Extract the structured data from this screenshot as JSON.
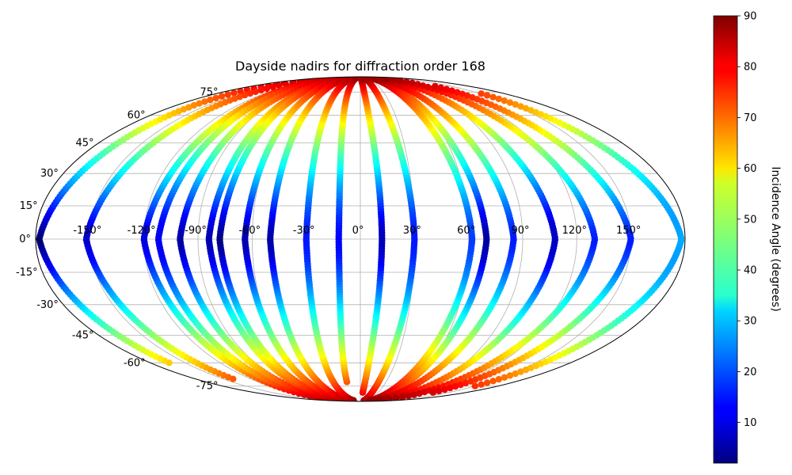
{
  "chart_data": {
    "type": "scatter",
    "projection": "mollweide",
    "title": "Dayside nadirs for diffraction order 168",
    "grid": true,
    "x_ticks": [
      "-150°",
      "-120°",
      "-90°",
      "-60°",
      "-30°",
      "0°",
      "30°",
      "60°",
      "90°",
      "120°",
      "150°"
    ],
    "x_tick_values": [
      -150,
      -120,
      -90,
      -60,
      -30,
      0,
      30,
      60,
      90,
      120,
      150
    ],
    "y_ticks": [
      "75°",
      "60°",
      "45°",
      "30°",
      "15°",
      "0°",
      "-15°",
      "-30°",
      "-45°",
      "-60°",
      "-75°"
    ],
    "y_tick_values": [
      75,
      60,
      45,
      30,
      15,
      0,
      -15,
      -30,
      -45,
      -60,
      -75
    ],
    "xlim": [
      -180,
      180
    ],
    "ylim": [
      -90,
      90
    ],
    "colorbar": {
      "label": "Incidence Angle (degrees)",
      "colormap": "jet",
      "range": [
        2,
        90
      ],
      "ticks": [
        "10",
        "20",
        "30",
        "40",
        "50",
        "60",
        "70",
        "80",
        "90"
      ],
      "tick_values": [
        10,
        20,
        30,
        40,
        50,
        60,
        70,
        80,
        90
      ]
    },
    "tracks": [
      {
        "lon0": -178,
        "lat": [
          -60,
          88
        ],
        "sun_lon": -178
      },
      {
        "lon0": -152,
        "lat": [
          -70,
          88
        ],
        "sun_lon": -160
      },
      {
        "lon0": -120,
        "lat": [
          -88,
          88
        ],
        "sun_lon": -130
      },
      {
        "lon0": -112,
        "lat": [
          -88,
          88
        ],
        "sun_lon": -100
      },
      {
        "lon0": -100,
        "lat": [
          -88,
          88
        ],
        "sun_lon": -105
      },
      {
        "lon0": -84,
        "lat": [
          -88,
          88
        ],
        "sun_lon": -90
      },
      {
        "lon0": -78,
        "lat": [
          -88,
          88
        ],
        "sun_lon": -80
      },
      {
        "lon0": -64,
        "lat": [
          -88,
          88
        ],
        "sun_lon": -70
      },
      {
        "lon0": -50,
        "lat": [
          -88,
          88
        ],
        "sun_lon": -55
      },
      {
        "lon0": -30,
        "lat": [
          -88,
          88
        ],
        "sun_lon": -15
      },
      {
        "lon0": -12,
        "lat": [
          -72,
          88
        ],
        "sun_lon": -25
      },
      {
        "lon0": 12,
        "lat": [
          -80,
          88
        ],
        "sun_lon": 5
      },
      {
        "lon0": 30,
        "lat": [
          -88,
          88
        ],
        "sun_lon": 15
      },
      {
        "lon0": 62,
        "lat": [
          -88,
          88
        ],
        "sun_lon": 80
      },
      {
        "lon0": 70,
        "lat": [
          -88,
          88
        ],
        "sun_lon": 65
      },
      {
        "lon0": 85,
        "lat": [
          -88,
          88
        ],
        "sun_lon": 100
      },
      {
        "lon0": 108,
        "lat": [
          -88,
          88
        ],
        "sun_lon": 100
      },
      {
        "lon0": 130,
        "lat": [
          -88,
          88
        ],
        "sun_lon": 145
      },
      {
        "lon0": 150,
        "lat": [
          -80,
          80
        ],
        "sun_lon": 165
      },
      {
        "lon0": 178,
        "lat": [
          -75,
          75
        ],
        "sun_lon": 150
      }
    ]
  }
}
